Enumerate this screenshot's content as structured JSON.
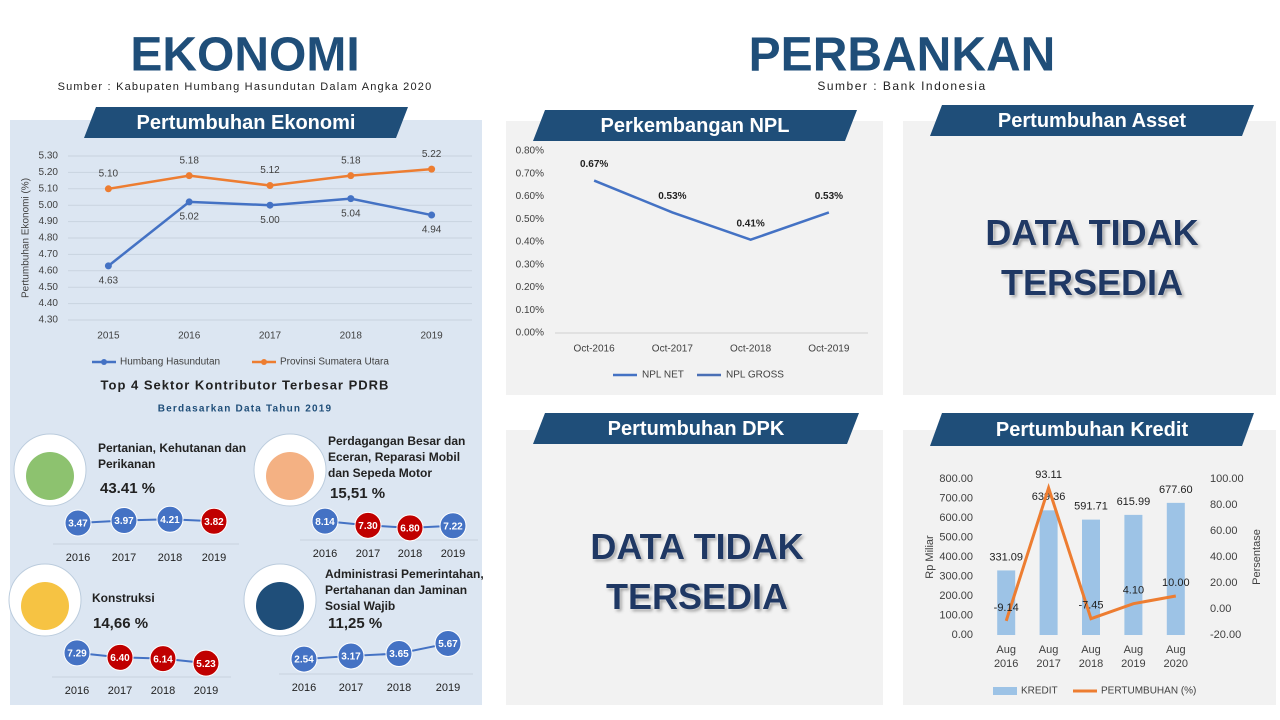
{
  "ekonomi": {
    "title": "EKONOMI",
    "source": "Sumber : Kabupaten Humbang Hasundutan Dalam Angka 2020"
  },
  "perbankan": {
    "title": "PERBANKAN",
    "source": "Sumber : Bank Indonesia"
  },
  "chart_data": [
    {
      "type": "line",
      "title": "Pertumbuhan Ekonomi",
      "y_label": "Pertumbuhan Ekonomi (%)",
      "categories": [
        "2015",
        "2016",
        "2017",
        "2018",
        "2019"
      ],
      "series": [
        {
          "name": "Humbang Hasundutan",
          "color": "#4472c4",
          "values": [
            4.63,
            5.02,
            5.0,
            5.04,
            4.94
          ],
          "value_labels": [
            "4.63",
            "5.02",
            "5.00",
            "5.04",
            "4.94"
          ]
        },
        {
          "name": "Provinsi Sumatera Utara",
          "color": "#ed7d31",
          "values": [
            5.1,
            5.18,
            5.12,
            5.18,
            5.22
          ],
          "value_labels": [
            "5.10",
            "5.18",
            "5.12",
            "5.18",
            "5.22"
          ]
        }
      ],
      "ylim": [
        4.3,
        5.3
      ],
      "yticks": [
        {
          "value": 4.3,
          "label": "4.30"
        },
        {
          "value": 4.4,
          "label": "4.40"
        },
        {
          "value": 4.5,
          "label": "4.50"
        },
        {
          "value": 4.6,
          "label": "4.60"
        },
        {
          "value": 4.7,
          "label": "4.70"
        },
        {
          "value": 4.8,
          "label": "4.80"
        },
        {
          "value": 4.9,
          "label": "4.90"
        },
        {
          "value": 5.0,
          "label": "5.00"
        },
        {
          "value": 5.1,
          "label": "5.10"
        },
        {
          "value": 5.2,
          "label": "5.20"
        },
        {
          "value": 5.3,
          "label": "5.30"
        }
      ],
      "grid": true,
      "legend": "bottom"
    },
    {
      "type": "line",
      "title": "Perkembangan NPL",
      "categories": [
        "Oct-2016",
        "Oct-2017",
        "Oct-2018",
        "Oct-2019"
      ],
      "series": [
        {
          "name": "NPL NET",
          "color": "#4472c4",
          "values": [
            0.67,
            0.53,
            0.41,
            0.53
          ],
          "value_labels": [
            "0.67%",
            "0.53%",
            "0.41%",
            "0.53%"
          ]
        },
        {
          "name": "NPL GROSS",
          "color": "#4a6fb5",
          "values": [
            null,
            null,
            null,
            null
          ]
        }
      ],
      "ylim": [
        0,
        0.8
      ],
      "yticks": [
        {
          "value": 0,
          "label": "0.00%"
        },
        {
          "value": 0.1,
          "label": "0.10%"
        },
        {
          "value": 0.2,
          "label": "0.20%"
        },
        {
          "value": 0.3,
          "label": "0.30%"
        },
        {
          "value": 0.4,
          "label": "0.40%"
        },
        {
          "value": 0.5,
          "label": "0.50%"
        },
        {
          "value": 0.6,
          "label": "0.60%"
        },
        {
          "value": 0.7,
          "label": "0.70%"
        },
        {
          "value": 0.8,
          "label": "0.80%"
        }
      ],
      "grid": false,
      "legend": "bottom"
    },
    {
      "type": "bar-line",
      "title": "Pertumbuhan Kredit",
      "y_label": "Rp Miliar",
      "y2_label": "Persentase",
      "categories": [
        "Aug 2016",
        "Aug 2017",
        "Aug 2018",
        "Aug 2019",
        "Aug 2020"
      ],
      "series": [
        {
          "name": "KREDIT",
          "color": "#9dc3e6",
          "values": [
            331.09,
            639.36,
            591.71,
            615.99,
            677.6
          ],
          "value_labels": [
            "331.09",
            "639.36",
            "591.71",
            "615.99",
            "677.60"
          ]
        },
        {
          "name": "PERTUMBUHAN (%)",
          "color": "#ed7d31",
          "axis": "y2",
          "values": [
            -9.14,
            93.11,
            -7.45,
            4.1,
            10.0
          ],
          "value_labels": [
            "-9.14",
            "93.11",
            "-7.45",
            "4.10",
            "10.00"
          ]
        }
      ],
      "ylim": [
        0,
        800
      ],
      "yticks": [
        {
          "value": 0,
          "label": "0.00"
        },
        {
          "value": 100,
          "label": "100.00"
        },
        {
          "value": 200,
          "label": "200.00"
        },
        {
          "value": 300,
          "label": "300.00"
        },
        {
          "value": 400,
          "label": "400.00"
        },
        {
          "value": 500,
          "label": "500.00"
        },
        {
          "value": 600,
          "label": "600.00"
        },
        {
          "value": 700,
          "label": "700.00"
        },
        {
          "value": 800,
          "label": "800.00"
        }
      ],
      "y2lim": [
        -20,
        100
      ],
      "y2ticks": [
        {
          "value": -20,
          "label": "-20.00"
        },
        {
          "value": 0,
          "label": "0.00"
        },
        {
          "value": 20,
          "label": "20.00"
        },
        {
          "value": 40,
          "label": "40.00"
        },
        {
          "value": 60,
          "label": "60.00"
        },
        {
          "value": 80,
          "label": "80.00"
        },
        {
          "value": 100,
          "label": "100.00"
        }
      ],
      "grid": false,
      "legend": "bottom"
    }
  ],
  "panels": [
    {
      "title": "Pertumbuhan Asset",
      "message": "DATA TIDAK TERSEDIA"
    },
    {
      "title": "Pertumbuhan DPK",
      "message": "DATA TIDAK TERSEDIA"
    }
  ],
  "sectors": {
    "title": "Top 4 Sektor Kontributor Terbesar PDRB",
    "subtitle": "Berdasarkan Data Tahun 2019",
    "items": [
      {
        "name": "Pertanian, Kehutanan dan Perikanan",
        "share": "43.41 %",
        "categories": [
          "2016",
          "2017",
          "2018",
          "2019"
        ],
        "values": [
          3.47,
          3.97,
          4.21,
          3.82
        ],
        "value_labels": [
          "3.47",
          "3.97",
          "4.21",
          "3.82"
        ],
        "colors": [
          "#4472c4",
          "#4472c4",
          "#4472c4",
          "#c00000"
        ]
      },
      {
        "name": "Perdagangan Besar dan Eceran, Reparasi Mobil dan Sepeda Motor",
        "share": "15,51 %",
        "categories": [
          "2016",
          "2017",
          "2018",
          "2019"
        ],
        "values": [
          8.14,
          7.3,
          6.8,
          7.22
        ],
        "value_labels": [
          "8.14",
          "7.30",
          "6.80",
          "7.22"
        ],
        "colors": [
          "#4472c4",
          "#c00000",
          "#c00000",
          "#4472c4"
        ]
      },
      {
        "name": "Konstruksi",
        "share": "14,66 %",
        "categories": [
          "2016",
          "2017",
          "2018",
          "2019"
        ],
        "values": [
          7.29,
          6.4,
          6.14,
          5.23
        ],
        "value_labels": [
          "7.29",
          "6.40",
          "6.14",
          "5.23"
        ],
        "colors": [
          "#4472c4",
          "#c00000",
          "#c00000",
          "#c00000"
        ]
      },
      {
        "name": "Administrasi Pemerintahan, Pertahanan dan Jaminan Sosial Wajib",
        "share": "11,25 %",
        "categories": [
          "2016",
          "2017",
          "2018",
          "2019"
        ],
        "values": [
          2.54,
          3.17,
          3.65,
          5.67
        ],
        "value_labels": [
          "2.54",
          "3.17",
          "3.65",
          "5.67"
        ],
        "colors": [
          "#4472c4",
          "#4472c4",
          "#4472c4",
          "#4472c4"
        ]
      }
    ]
  }
}
